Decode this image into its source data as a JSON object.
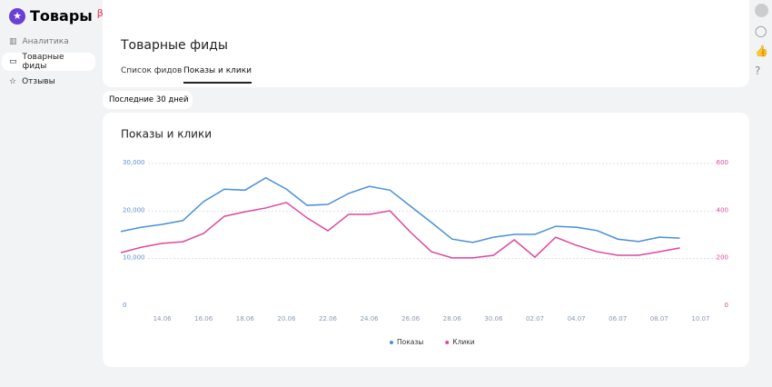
{
  "ui": {
    "logo": "Товары",
    "logo_badge": "β",
    "nav": [
      "Аналитика",
      "Товарные фиды",
      "Отзывы"
    ],
    "page_title": "Товарные фиды",
    "tabs": [
      "Список фидов",
      "Показы и клики"
    ],
    "period": "Последние 30 дней"
  },
  "chart_data": {
    "type": "line",
    "title": "Показы и клики",
    "categories": [
      null,
      null,
      "14.06",
      null,
      "16.06",
      null,
      "18.06",
      null,
      "20.06",
      null,
      "22.06",
      null,
      "24.06",
      null,
      "26.06",
      null,
      "28.06",
      null,
      "30.06",
      null,
      "02.07",
      null,
      "04.07",
      null,
      "06.07",
      null,
      "08.07",
      null,
      "10.07"
    ],
    "series": [
      {
        "name": "Показы",
        "color": "#4a90d9",
        "axis": "y",
        "values": [
          15700,
          16600,
          17200,
          18000,
          22000,
          24600,
          24400,
          27000,
          24600,
          21200,
          21400,
          23700,
          25200,
          24400,
          21000,
          17600,
          14100,
          13400,
          14500,
          15100,
          15100,
          16800,
          16600,
          15900,
          14100,
          13600,
          14500,
          14300,
          null
        ]
      },
      {
        "name": "Клики",
        "color": "#d94a9e",
        "axis": "y2",
        "values": [
          225,
          248,
          264,
          271,
          306,
          378,
          397,
          413,
          436,
          371,
          317,
          386,
          386,
          401,
          310,
          229,
          203,
          203,
          214,
          279,
          206,
          290,
          256,
          229,
          214,
          214,
          229,
          245,
          null
        ]
      }
    ],
    "ylim": [
      0,
      30000
    ],
    "yticks": [
      0,
      {
        "value": 10000,
        "label": "10,000"
      },
      {
        "value": 20000,
        "label": "20,000"
      },
      {
        "value": 30000,
        "label": "30,000"
      }
    ],
    "y2lim": [
      0,
      600
    ],
    "y2ticks": [
      0,
      200,
      400,
      600
    ],
    "grid": true,
    "legend": "bottom"
  }
}
